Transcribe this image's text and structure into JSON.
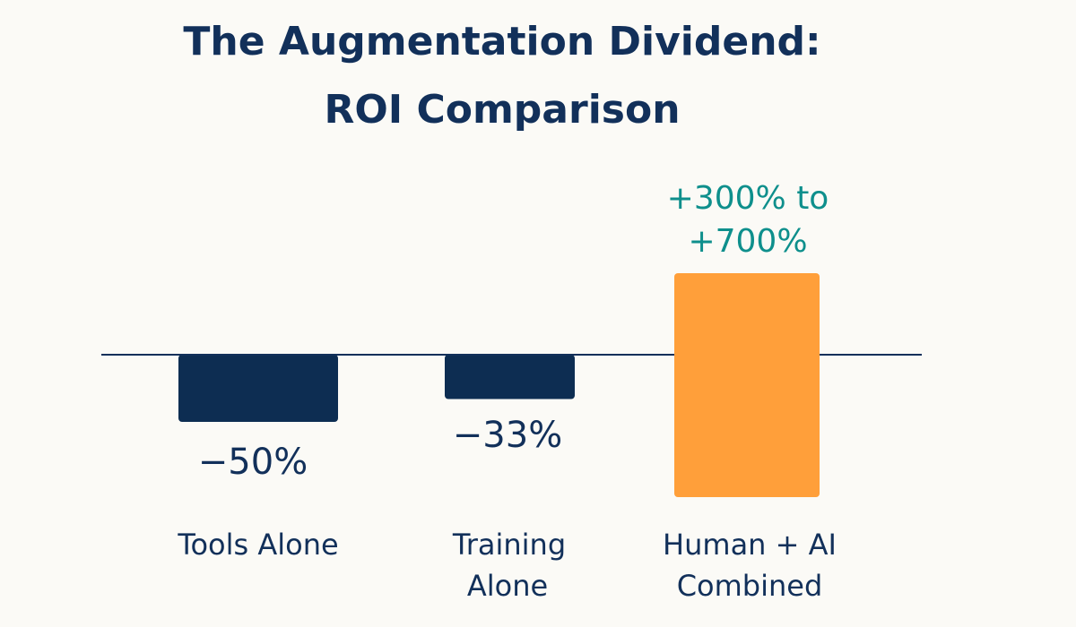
{
  "chart_data": {
    "type": "bar",
    "title_line1": "The Augmentation Dividend:",
    "title_line2": "ROI Comparison",
    "xlabel": "",
    "ylabel": "",
    "grid": false,
    "categories": [
      {
        "line1": "Tools Alone",
        "line2": ""
      },
      {
        "line1": "Training",
        "line2": "Alone"
      },
      {
        "line1": "Human + AI",
        "line2": "Combined"
      }
    ],
    "values": [
      -50,
      -33,
      [
        300,
        700
      ]
    ],
    "data_labels": [
      {
        "line1": "−50%",
        "line2": ""
      },
      {
        "line1": "−33%",
        "line2": ""
      },
      {
        "line1": "+300% to",
        "line2": "+700%"
      }
    ],
    "colors": {
      "negative": "#0d2d52",
      "positive": "#ff9f3a",
      "highlight_label": "#0e8f8c",
      "text": "#12305a",
      "baseline": "#12305a",
      "background": "#fbfaf6"
    }
  }
}
